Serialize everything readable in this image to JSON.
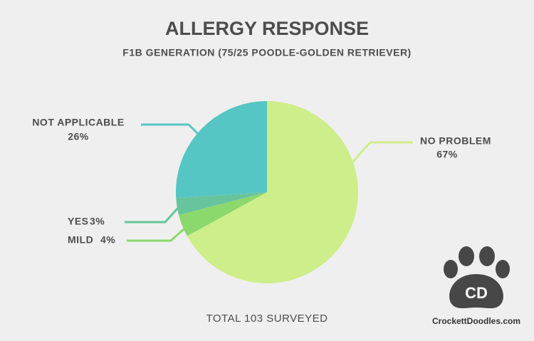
{
  "chart_data": {
    "type": "pie",
    "title": "ALLERGY RESPONSE",
    "subtitle": "F1B GENERATION (75/25 POODLE-GOLDEN RETRIEVER)",
    "categories": [
      "NO PROBLEM",
      "MILD",
      "YES",
      "NOT APPLICABLE"
    ],
    "values": [
      67,
      4,
      3,
      26
    ],
    "value_labels": [
      "67%",
      "4%",
      "3%",
      "26%"
    ],
    "colors": [
      "#cdee8a",
      "#8bd86c",
      "#68c49c",
      "#55c6c4"
    ],
    "annotations": [
      "TOTAL 103 SURVEYED"
    ],
    "watermark": {
      "mark": "CD",
      "site": "CrockettDoodles.com"
    }
  }
}
